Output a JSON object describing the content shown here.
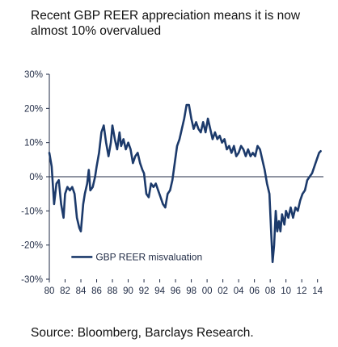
{
  "chart_data": {
    "type": "line",
    "title": "Recent GBP REER appreciation means it is now almost 10% overvalued",
    "xlabel": "",
    "ylabel": "",
    "ylim": [
      -30,
      30
    ],
    "xlim": [
      1980,
      2014.75
    ],
    "y_ticks": [
      30,
      20,
      10,
      0,
      -10,
      -20,
      -30
    ],
    "y_tick_labels": [
      "30%",
      "20%",
      "10%",
      "0%",
      "-10%",
      "-20%",
      "-30%"
    ],
    "x_ticks": [
      1980,
      1982,
      1984,
      1986,
      1988,
      1990,
      1992,
      1994,
      1996,
      1998,
      2000,
      2002,
      2004,
      2006,
      2008,
      2010,
      2012,
      2014
    ],
    "x_tick_labels": [
      "80",
      "82",
      "84",
      "86",
      "88",
      "90",
      "92",
      "94",
      "96",
      "98",
      "00",
      "02",
      "04",
      "06",
      "08",
      "10",
      "12",
      "14"
    ],
    "legend_position": "bottom-left",
    "grid": false,
    "series": [
      {
        "name": "GBP REER misvaluation",
        "color": "#1c3a6b",
        "points": [
          [
            1980.0,
            7
          ],
          [
            1980.3,
            3
          ],
          [
            1980.6,
            -8
          ],
          [
            1980.9,
            -2
          ],
          [
            1981.2,
            -1
          ],
          [
            1981.5,
            -8
          ],
          [
            1981.8,
            -12
          ],
          [
            1982.0,
            -5
          ],
          [
            1982.3,
            -3
          ],
          [
            1982.6,
            -4
          ],
          [
            1982.9,
            -3
          ],
          [
            1983.2,
            -5
          ],
          [
            1983.5,
            -12
          ],
          [
            1983.8,
            -15
          ],
          [
            1984.0,
            -16
          ],
          [
            1984.3,
            -8
          ],
          [
            1984.5,
            -5
          ],
          [
            1984.8,
            -2
          ],
          [
            1985.0,
            2
          ],
          [
            1985.2,
            -4
          ],
          [
            1985.5,
            -3
          ],
          [
            1985.8,
            0
          ],
          [
            1986.0,
            3
          ],
          [
            1986.3,
            7
          ],
          [
            1986.6,
            13
          ],
          [
            1986.9,
            15
          ],
          [
            1987.2,
            10
          ],
          [
            1987.5,
            6
          ],
          [
            1987.8,
            10
          ],
          [
            1988.0,
            15
          ],
          [
            1988.3,
            11
          ],
          [
            1988.6,
            8
          ],
          [
            1988.9,
            13
          ],
          [
            1989.1,
            9
          ],
          [
            1989.4,
            11
          ],
          [
            1989.7,
            8
          ],
          [
            1990.0,
            10
          ],
          [
            1990.3,
            8
          ],
          [
            1990.6,
            4
          ],
          [
            1990.9,
            6
          ],
          [
            1991.2,
            7
          ],
          [
            1991.5,
            4
          ],
          [
            1991.8,
            2
          ],
          [
            1992.0,
            1
          ],
          [
            1992.3,
            -5
          ],
          [
            1992.6,
            -6
          ],
          [
            1992.9,
            -2
          ],
          [
            1993.2,
            -3
          ],
          [
            1993.5,
            -2
          ],
          [
            1993.8,
            -4
          ],
          [
            1994.1,
            -6
          ],
          [
            1994.4,
            -8
          ],
          [
            1994.7,
            -9
          ],
          [
            1995.0,
            -5
          ],
          [
            1995.3,
            -4
          ],
          [
            1995.6,
            -1
          ],
          [
            1995.9,
            4
          ],
          [
            1996.2,
            9
          ],
          [
            1996.5,
            11
          ],
          [
            1996.8,
            14
          ],
          [
            1997.1,
            17
          ],
          [
            1997.4,
            21
          ],
          [
            1997.7,
            21
          ],
          [
            1998.0,
            17
          ],
          [
            1998.3,
            14
          ],
          [
            1998.6,
            16
          ],
          [
            1998.9,
            14
          ],
          [
            1999.2,
            13
          ],
          [
            1999.5,
            16
          ],
          [
            1999.8,
            13
          ],
          [
            2000.1,
            17
          ],
          [
            2000.4,
            14
          ],
          [
            2000.7,
            11
          ],
          [
            2001.0,
            13
          ],
          [
            2001.3,
            11
          ],
          [
            2001.6,
            12
          ],
          [
            2001.9,
            10
          ],
          [
            2002.2,
            11
          ],
          [
            2002.5,
            8
          ],
          [
            2002.8,
            9
          ],
          [
            2003.1,
            7
          ],
          [
            2003.4,
            9
          ],
          [
            2003.7,
            6
          ],
          [
            2004.0,
            7
          ],
          [
            2004.3,
            9
          ],
          [
            2004.6,
            8
          ],
          [
            2004.9,
            6
          ],
          [
            2005.2,
            8
          ],
          [
            2005.5,
            6
          ],
          [
            2005.8,
            7
          ],
          [
            2006.1,
            6
          ],
          [
            2006.4,
            9
          ],
          [
            2006.7,
            8
          ],
          [
            2007.0,
            5
          ],
          [
            2007.3,
            2
          ],
          [
            2007.6,
            -2
          ],
          [
            2007.9,
            -5
          ],
          [
            2008.1,
            -15
          ],
          [
            2008.3,
            -25
          ],
          [
            2008.5,
            -20
          ],
          [
            2008.7,
            -10
          ],
          [
            2008.9,
            -16
          ],
          [
            2009.1,
            -13
          ],
          [
            2009.3,
            -16
          ],
          [
            2009.5,
            -11
          ],
          [
            2009.8,
            -14
          ],
          [
            2010.0,
            -10
          ],
          [
            2010.3,
            -12
          ],
          [
            2010.6,
            -9
          ],
          [
            2010.9,
            -12
          ],
          [
            2011.2,
            -9
          ],
          [
            2011.5,
            -10
          ],
          [
            2011.8,
            -7
          ],
          [
            2012.1,
            -5
          ],
          [
            2012.4,
            -4
          ],
          [
            2012.7,
            -1
          ],
          [
            2013.0,
            0
          ],
          [
            2013.3,
            1
          ],
          [
            2013.6,
            3
          ],
          [
            2013.9,
            5
          ],
          [
            2014.2,
            7
          ],
          [
            2014.4,
            7.5
          ]
        ]
      }
    ]
  },
  "footer": {
    "source": "Source: Bloomberg, Barclays Research."
  }
}
